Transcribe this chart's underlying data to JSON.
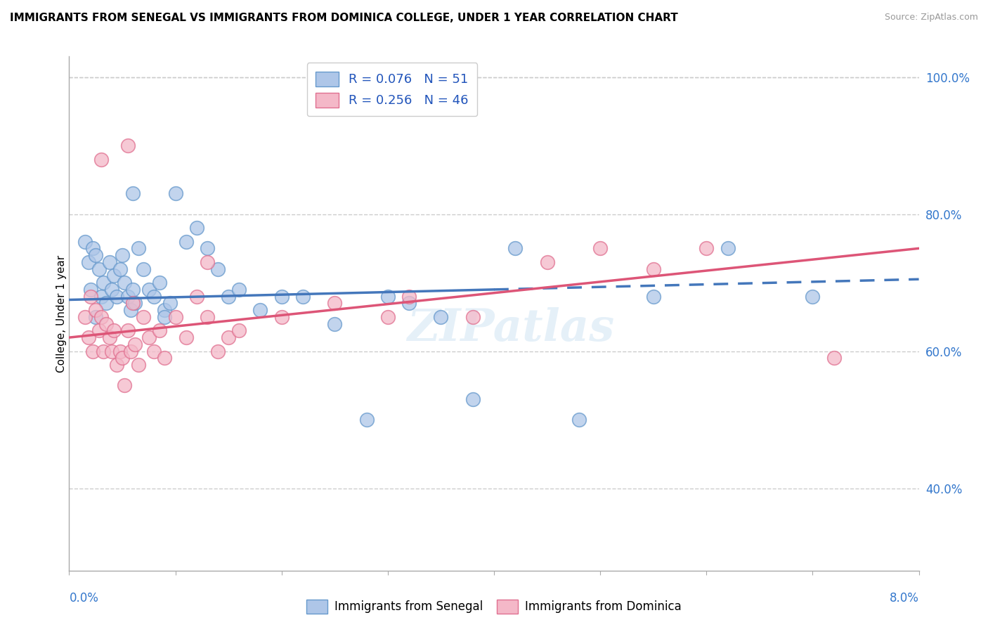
{
  "title": "IMMIGRANTS FROM SENEGAL VS IMMIGRANTS FROM DOMINICA COLLEGE, UNDER 1 YEAR CORRELATION CHART",
  "source": "Source: ZipAtlas.com",
  "ylabel": "College, Under 1 year",
  "xmin": 0.0,
  "xmax": 8.0,
  "ymin": 28.0,
  "ymax": 103.0,
  "yticks": [
    40.0,
    60.0,
    80.0,
    100.0
  ],
  "ytick_labels": [
    "40.0%",
    "60.0%",
    "80.0%",
    "100.0%"
  ],
  "legend_blue_label": "R = 0.076   N = 51",
  "legend_pink_label": "R = 0.256   N = 46",
  "blue_color": "#aec6e8",
  "pink_color": "#f4b8c8",
  "blue_edge": "#6699cc",
  "pink_edge": "#e07090",
  "trend_blue": "#4477bb",
  "trend_pink": "#dd5577",
  "senegal_x": [
    0.15,
    0.18,
    0.2,
    0.22,
    0.25,
    0.28,
    0.3,
    0.32,
    0.35,
    0.38,
    0.4,
    0.42,
    0.45,
    0.48,
    0.5,
    0.52,
    0.55,
    0.58,
    0.6,
    0.62,
    0.65,
    0.7,
    0.75,
    0.8,
    0.85,
    0.9,
    0.95,
    1.0,
    1.1,
    1.2,
    1.3,
    1.4,
    1.5,
    1.6,
    1.8,
    2.0,
    2.2,
    2.5,
    2.8,
    3.0,
    3.2,
    3.5,
    3.8,
    4.2,
    4.8,
    5.5,
    6.2,
    7.0,
    0.25,
    0.6,
    0.9
  ],
  "senegal_y": [
    76,
    73,
    69,
    75,
    74,
    72,
    68,
    70,
    67,
    73,
    69,
    71,
    68,
    72,
    74,
    70,
    68,
    66,
    69,
    67,
    75,
    72,
    69,
    68,
    70,
    66,
    67,
    83,
    76,
    78,
    75,
    72,
    68,
    69,
    66,
    68,
    68,
    64,
    50,
    68,
    67,
    65,
    53,
    75,
    50,
    68,
    75,
    68,
    65,
    83,
    65
  ],
  "dominica_x": [
    0.15,
    0.18,
    0.2,
    0.22,
    0.25,
    0.28,
    0.3,
    0.32,
    0.35,
    0.38,
    0.4,
    0.42,
    0.45,
    0.48,
    0.5,
    0.52,
    0.55,
    0.58,
    0.6,
    0.62,
    0.65,
    0.7,
    0.75,
    0.8,
    0.85,
    0.9,
    1.0,
    1.1,
    1.2,
    1.3,
    1.4,
    1.5,
    1.6,
    2.0,
    2.5,
    3.0,
    3.2,
    3.8,
    4.5,
    5.0,
    5.5,
    6.0,
    0.3,
    0.55,
    1.3,
    7.2
  ],
  "dominica_y": [
    65,
    62,
    68,
    60,
    66,
    63,
    65,
    60,
    64,
    62,
    60,
    63,
    58,
    60,
    59,
    55,
    63,
    60,
    67,
    61,
    58,
    65,
    62,
    60,
    63,
    59,
    65,
    62,
    68,
    65,
    60,
    62,
    63,
    65,
    67,
    65,
    68,
    65,
    73,
    75,
    72,
    75,
    88,
    90,
    73,
    59
  ],
  "trend_blue_x0": 0.0,
  "trend_blue_x1": 8.0,
  "trend_blue_y0": 67.5,
  "trend_blue_y1": 70.5,
  "trend_pink_x0": 0.0,
  "trend_pink_x1": 8.0,
  "trend_pink_y0": 62.0,
  "trend_pink_y1": 75.0,
  "dash_start_x": 4.0,
  "dash_end_x": 8.0
}
